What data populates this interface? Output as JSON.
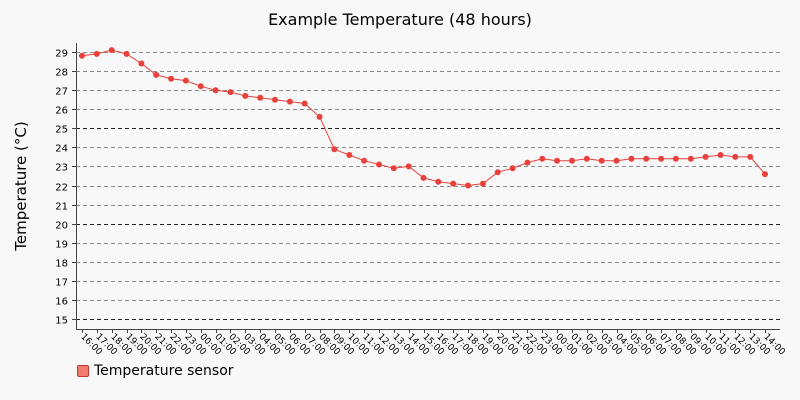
{
  "chart_data": {
    "type": "line",
    "title": "Example Temperature (48 hours)",
    "xlabel": "",
    "ylabel": "Temperature (°C)",
    "ylim": [
      15,
      29
    ],
    "yticks": [
      15,
      16,
      17,
      18,
      19,
      20,
      21,
      22,
      23,
      24,
      25,
      26,
      27,
      28,
      29
    ],
    "grid": true,
    "legend_position": "bottom-left",
    "categories": [
      "16:00",
      "17:00",
      "18:00",
      "19:00",
      "20:00",
      "21:00",
      "22:00",
      "23:00",
      "00:00",
      "01:00",
      "02:00",
      "03:00",
      "04:00",
      "05:00",
      "06:00",
      "07:00",
      "08:00",
      "09:00",
      "10:00",
      "11:00",
      "12:00",
      "13:00",
      "14:00",
      "15:00",
      "16:00",
      "17:00",
      "18:00",
      "19:00",
      "20:00",
      "21:00",
      "22:00",
      "23:00",
      "00:00",
      "01:00",
      "02:00",
      "03:00",
      "04:00",
      "05:00",
      "06:00",
      "07:00",
      "08:00",
      "09:00",
      "10:00",
      "11:00",
      "12:00",
      "13:00",
      "14:00"
    ],
    "series": [
      {
        "name": "Temperature sensor",
        "color": "#e8413c",
        "values": [
          28.8,
          28.9,
          29.1,
          28.9,
          28.4,
          27.8,
          27.6,
          27.5,
          27.2,
          27.0,
          26.9,
          26.7,
          26.6,
          26.5,
          26.4,
          26.3,
          25.6,
          23.9,
          23.6,
          23.3,
          23.1,
          22.9,
          23.0,
          22.4,
          22.2,
          22.1,
          22.0,
          22.1,
          22.7,
          22.9,
          23.2,
          23.4,
          23.3,
          23.3,
          23.4,
          23.3,
          23.3,
          23.4,
          23.4,
          23.4,
          23.4,
          23.4,
          23.5,
          23.6,
          23.5,
          23.5,
          22.6
        ]
      }
    ]
  },
  "legend": {
    "label": "Temperature sensor"
  }
}
